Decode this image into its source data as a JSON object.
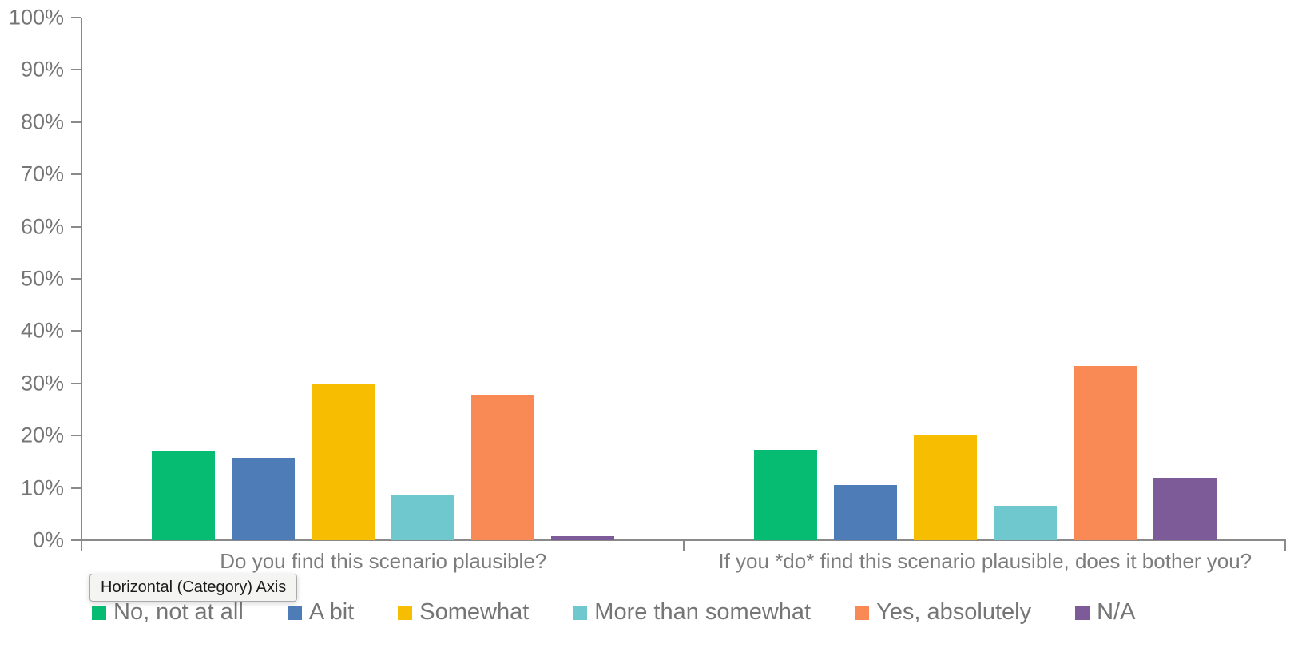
{
  "window": {
    "background": "#ffffff"
  },
  "tooltip": {
    "text": "Horizontal (Category) Axis"
  },
  "chart_data": {
    "type": "bar",
    "title": "",
    "xlabel": "",
    "ylabel": "",
    "grid": false,
    "legend_position": "bottom",
    "axis_color": "#8A8A8A",
    "label_color": "#757575",
    "category_label_color": "#7C7C7C",
    "ylim": [
      0,
      100
    ],
    "y_tick_labels": [
      "0%",
      "10%",
      "20%",
      "30%",
      "40%",
      "50%",
      "60%",
      "70%",
      "80%",
      "90%",
      "100%"
    ],
    "categories": [
      "Do you find this scenario plausible?",
      "If you *do* find this scenario plausible, does it bother you?"
    ],
    "series": [
      {
        "name": "No, not at all",
        "color": "#05BC72",
        "values": [
          17.1,
          17.3
        ]
      },
      {
        "name": "A bit",
        "color": "#4E7CB6",
        "values": [
          15.7,
          10.5
        ]
      },
      {
        "name": "Somewhat",
        "color": "#F7BD00",
        "values": [
          30.0,
          20.0
        ]
      },
      {
        "name": "More than somewhat",
        "color": "#6EC8CE",
        "values": [
          8.6,
          6.6
        ]
      },
      {
        "name": "Yes, absolutely",
        "color": "#FA8A55",
        "values": [
          27.9,
          33.3
        ]
      },
      {
        "name": "N/A",
        "color": "#7D5B99",
        "values": [
          0.7,
          11.9
        ]
      }
    ]
  }
}
